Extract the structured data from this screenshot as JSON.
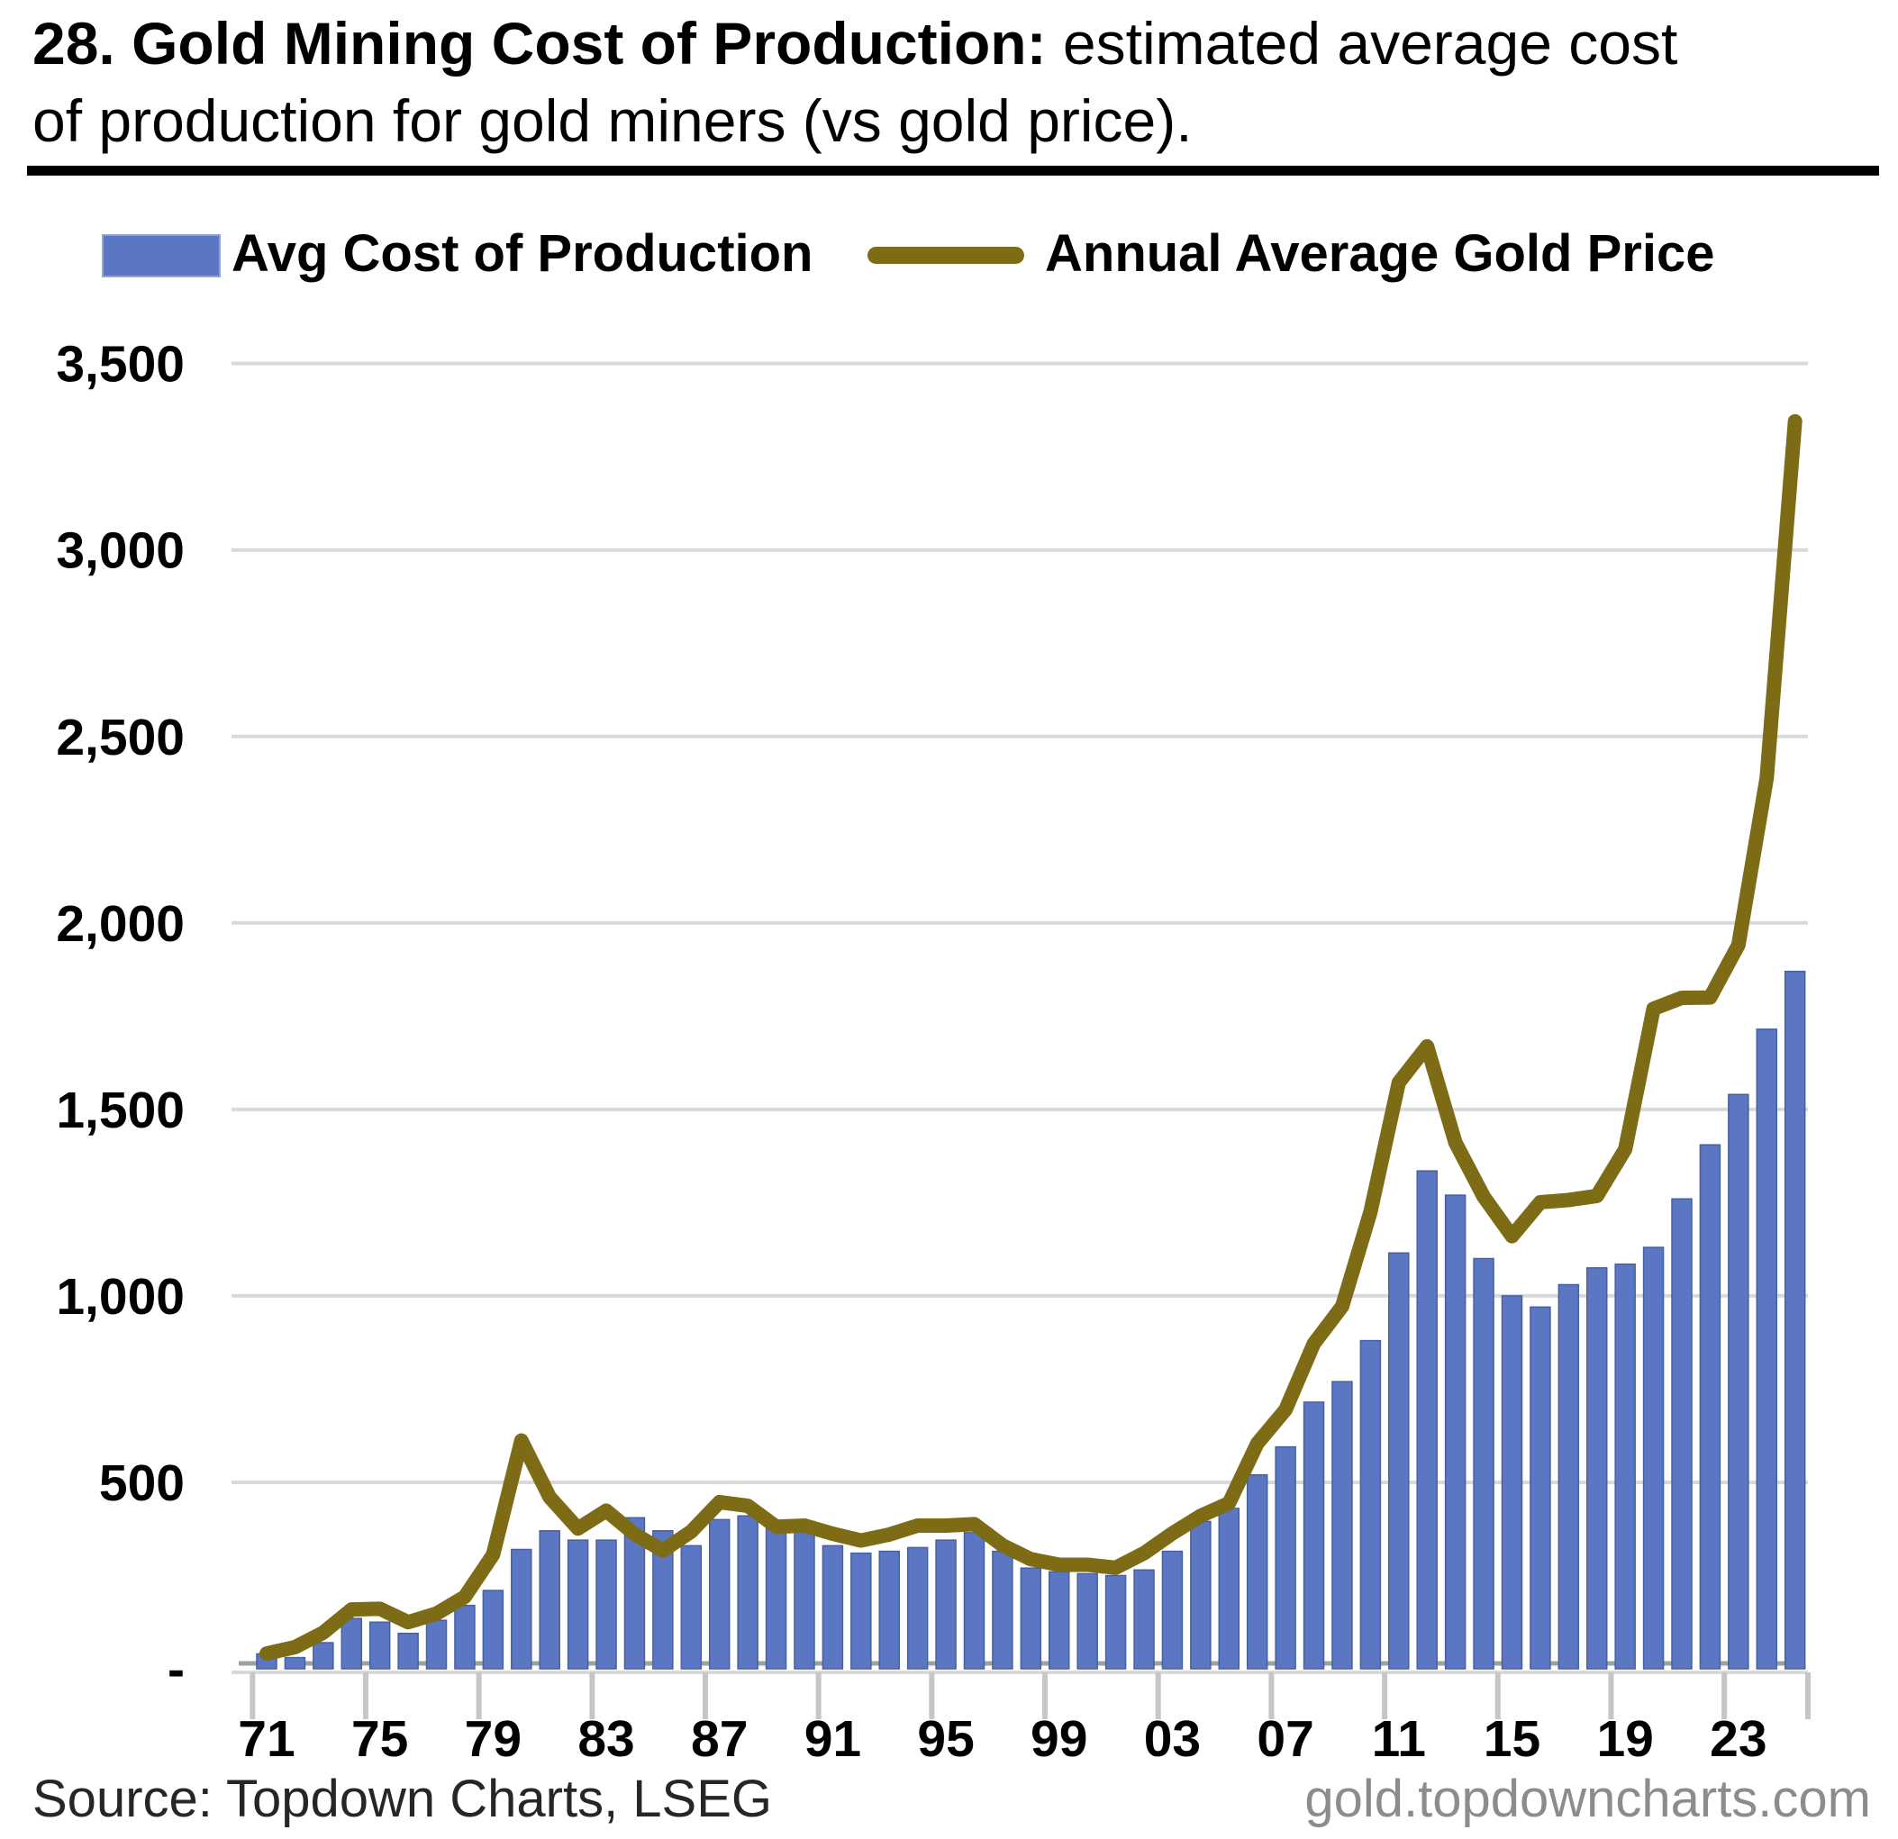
{
  "page": {
    "title_bold": "28. Gold Mining Cost of Production:",
    "title_rest": " estimated average cost of production for gold miners (vs gold price).",
    "footer_source": "Source: Topdown Charts, LSEG",
    "footer_site": "gold.topdowncharts.com"
  },
  "legend": {
    "bar_label": "Avg Cost of Production",
    "line_label": "Annual Average Gold Price"
  },
  "colors": {
    "bar": "#5B77C4",
    "bar_border": "#47619E",
    "line": "#7D6B16",
    "gridline": "#D9D9D9",
    "tick": "#C6C6C6",
    "zero_dash": "#A0A0A0",
    "text": "#000000",
    "footer_site": "#8C8C8C"
  },
  "chart_data": {
    "type": "combo-bar-line",
    "title": "28. Gold Mining Cost of Production: estimated average cost of production for gold miners (vs gold price).",
    "years": [
      1971,
      1972,
      1973,
      1974,
      1975,
      1976,
      1977,
      1978,
      1979,
      1980,
      1981,
      1982,
      1983,
      1984,
      1985,
      1986,
      1987,
      1988,
      1989,
      1990,
      1991,
      1992,
      1993,
      1994,
      1995,
      1996,
      1997,
      1998,
      1999,
      2000,
      2001,
      2002,
      2003,
      2004,
      2005,
      2006,
      2007,
      2008,
      2009,
      2010,
      2011,
      2012,
      2013,
      2014,
      2015,
      2016,
      2017,
      2018,
      2019,
      2020,
      2021,
      2022,
      2023,
      2024,
      2025
    ],
    "series": [
      {
        "name": "Avg Cost of Production",
        "type": "bar",
        "color": "#5B77C4",
        "values": [
          40,
          30,
          70,
          135,
          125,
          95,
          130,
          170,
          210,
          320,
          370,
          345,
          345,
          405,
          370,
          330,
          400,
          410,
          390,
          395,
          330,
          310,
          315,
          325,
          345,
          365,
          315,
          270,
          260,
          255,
          250,
          265,
          315,
          395,
          430,
          520,
          595,
          715,
          770,
          880,
          1115,
          1335,
          1270,
          1100,
          1000,
          970,
          1030,
          1075,
          1085,
          1130,
          1260,
          1405,
          1540,
          1715,
          1870
        ]
      },
      {
        "name": "Annual Average Gold Price",
        "type": "line",
        "color": "#7D6B16",
        "values": [
          41,
          58,
          97,
          159,
          161,
          125,
          148,
          193,
          306,
          612,
          460,
          376,
          424,
          361,
          317,
          368,
          447,
          437,
          381,
          384,
          362,
          344,
          360,
          384,
          384,
          388,
          331,
          294,
          279,
          279,
          271,
          310,
          363,
          410,
          444,
          604,
          695,
          872,
          972,
          1225,
          1572,
          1669,
          1411,
          1266,
          1160,
          1251,
          1257,
          1268,
          1393,
          1770,
          1799,
          1800,
          1941,
          2389,
          3345
        ]
      }
    ],
    "ylim": [
      0,
      3500
    ],
    "yticks": [
      {
        "value": 0,
        "label": "-"
      },
      {
        "value": 500,
        "label": "500"
      },
      {
        "value": 1000,
        "label": "1,000"
      },
      {
        "value": 1500,
        "label": "1,500"
      },
      {
        "value": 2000,
        "label": "2,000"
      },
      {
        "value": 2500,
        "label": "2,500"
      },
      {
        "value": 3000,
        "label": "3,000"
      },
      {
        "value": 3500,
        "label": "3,500"
      }
    ],
    "xtick_years": [
      1971,
      1975,
      1979,
      1983,
      1987,
      1991,
      1995,
      1999,
      2003,
      2007,
      2011,
      2015,
      2019,
      2023
    ],
    "xtick_labels": [
      "71",
      "75",
      "79",
      "83",
      "87",
      "91",
      "95",
      "99",
      "03",
      "07",
      "11",
      "15",
      "19",
      "23"
    ],
    "grid": true,
    "legend_position": "top"
  }
}
